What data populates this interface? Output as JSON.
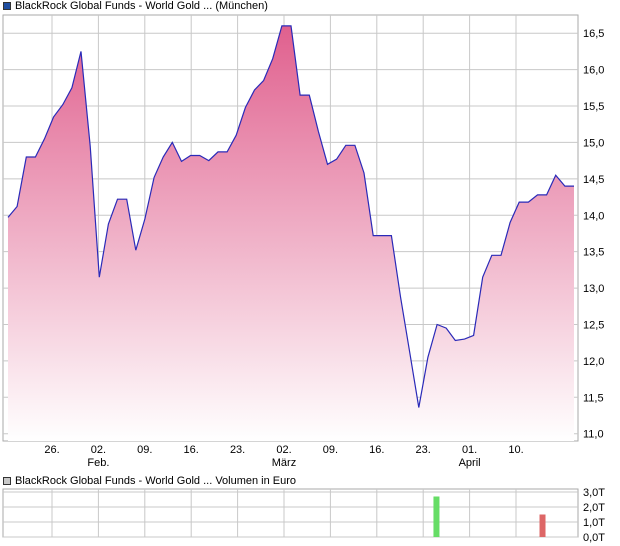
{
  "legend": {
    "price_label": "BlackRock Global Funds - World Gold ... (München)",
    "price_color": "#1f4ea1",
    "volume_label": "BlackRock Global Funds - World Gold ... Volumen in Euro",
    "volume_color": "#c8c8c8"
  },
  "colors": {
    "line": "#2a2ab8",
    "fill_top": "#e0608e",
    "fill_bottom": "#ffffff",
    "grid": "#c8c8c8",
    "vol_up": "#66dd66",
    "vol_down": "#dd6666"
  },
  "chart_data": [
    {
      "type": "area",
      "x_ticks": [
        "26.",
        "02.",
        "09.",
        "16.",
        "23.",
        "02.",
        "09.",
        "16.",
        "23.",
        "01.",
        "10."
      ],
      "x_month_labels": [
        {
          "label": "Feb.",
          "under_tick": 1
        },
        {
          "label": "März",
          "under_tick": 5
        },
        {
          "label": "April",
          "under_tick": 9
        }
      ],
      "y_ticks": [
        "11,0",
        "11,5",
        "12,0",
        "12,5",
        "13,0",
        "13,5",
        "14,0",
        "14,5",
        "15,0",
        "15,5",
        "16,0",
        "16,5"
      ],
      "ylim": [
        10.9,
        16.75
      ],
      "grid": true,
      "series": [
        {
          "values": [
            13.97,
            14.12,
            14.8,
            14.8,
            15.05,
            15.35,
            15.52,
            15.75,
            16.25,
            14.95,
            13.15,
            13.88,
            14.22,
            14.22,
            13.52,
            13.95,
            14.52,
            14.8,
            15.0,
            14.74,
            14.82,
            14.82,
            14.75,
            14.87,
            14.87,
            15.1,
            15.48,
            15.72,
            15.85,
            16.15,
            16.6,
            16.6,
            15.65,
            15.65,
            15.15,
            14.7,
            14.77,
            14.96,
            14.96,
            14.58,
            13.72,
            13.72,
            13.72,
            12.88,
            12.12,
            11.36,
            12.05,
            12.5,
            12.45,
            12.28,
            12.3,
            12.35,
            13.15,
            13.45,
            13.45,
            13.9,
            14.18,
            14.18,
            14.28,
            14.28,
            14.55,
            14.4,
            14.4
          ]
        }
      ]
    },
    {
      "type": "bar",
      "y_ticks": [
        "0,0T",
        "1,0T",
        "2,0T",
        "3,0T"
      ],
      "ylim": [
        0,
        3.2
      ],
      "grid": true,
      "bars": [
        {
          "after_tick": 8,
          "offset_days": 2,
          "value": 2.7,
          "direction": "up"
        },
        {
          "after_tick": 10,
          "offset_days": 4,
          "value": 1.5,
          "direction": "down"
        }
      ]
    }
  ]
}
